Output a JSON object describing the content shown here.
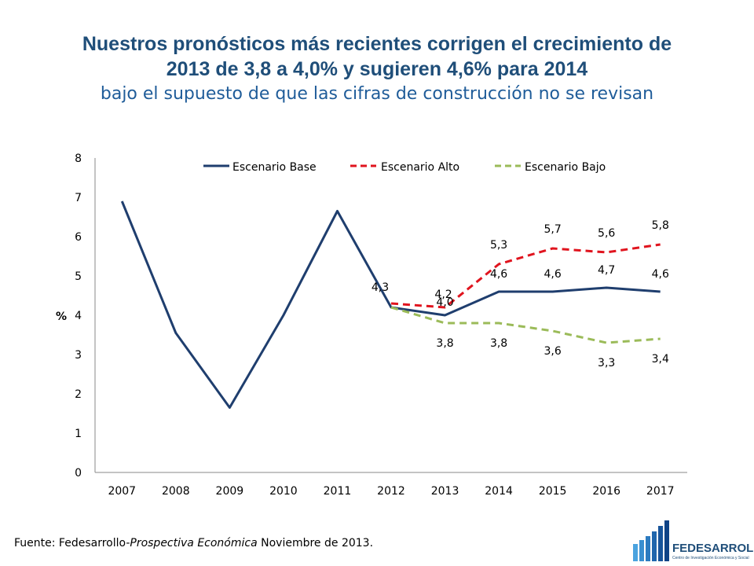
{
  "title": {
    "line1": "Nuestros pronósticos más recientes corrigen el crecimiento de",
    "line2": "2013 de 3,8 a 4,0% y sugieren 4,6% para 2014",
    "subtitle": "bajo el supuesto de que las cifras de construcción no se revisan"
  },
  "footer": {
    "prefix": "Fuente: Fedesarrollo-",
    "italic": "Prospectiva Económica",
    "suffix": " Noviembre de 2013."
  },
  "logo": {
    "name": "FEDESARROLLO",
    "tagline": "Centro de Investigación Económica y Social"
  },
  "colors": {
    "base": "#1f3e6e",
    "alto": "#e0141e",
    "bajo": "#9bbb59",
    "title": "#1f4e79"
  },
  "chart_data": {
    "type": "line",
    "ylabel": "%",
    "ylim": [
      0,
      8
    ],
    "yticks": [
      "0",
      "1",
      "2",
      "3",
      "4",
      "5",
      "6",
      "7",
      "8"
    ],
    "categories": [
      "2007",
      "2008",
      "2009",
      "2010",
      "2011",
      "2012",
      "2013",
      "2014",
      "2015",
      "2016",
      "2017"
    ],
    "legend_position": "top",
    "grid": false,
    "series": [
      {
        "name": "Escenario Base",
        "style": "solid",
        "color": "#1f3e6e",
        "values": [
          6.9,
          3.55,
          1.65,
          4.0,
          6.65,
          4.2,
          4.0,
          4.6,
          4.6,
          4.7,
          4.6
        ],
        "labels": [
          null,
          null,
          null,
          null,
          null,
          null,
          "4,0",
          "4,6",
          "4,6",
          "4,7",
          "4,6"
        ]
      },
      {
        "name": "Escenario Alto",
        "style": "dashed",
        "color": "#e0141e",
        "values": [
          null,
          null,
          null,
          null,
          null,
          4.3,
          4.2,
          5.3,
          5.7,
          5.6,
          5.8
        ],
        "labels": [
          null,
          null,
          null,
          null,
          null,
          "4,3",
          "4,2",
          "5,3",
          "5,7",
          "5,6",
          "5,8"
        ]
      },
      {
        "name": "Escenario Bajo",
        "style": "dashed",
        "color": "#9bbb59",
        "values": [
          null,
          null,
          null,
          null,
          null,
          4.2,
          3.8,
          3.8,
          3.6,
          3.3,
          3.4
        ],
        "labels": [
          null,
          null,
          null,
          null,
          null,
          null,
          "3,8",
          "3,8",
          "3,6",
          "3,3",
          "3,4"
        ]
      }
    ]
  }
}
